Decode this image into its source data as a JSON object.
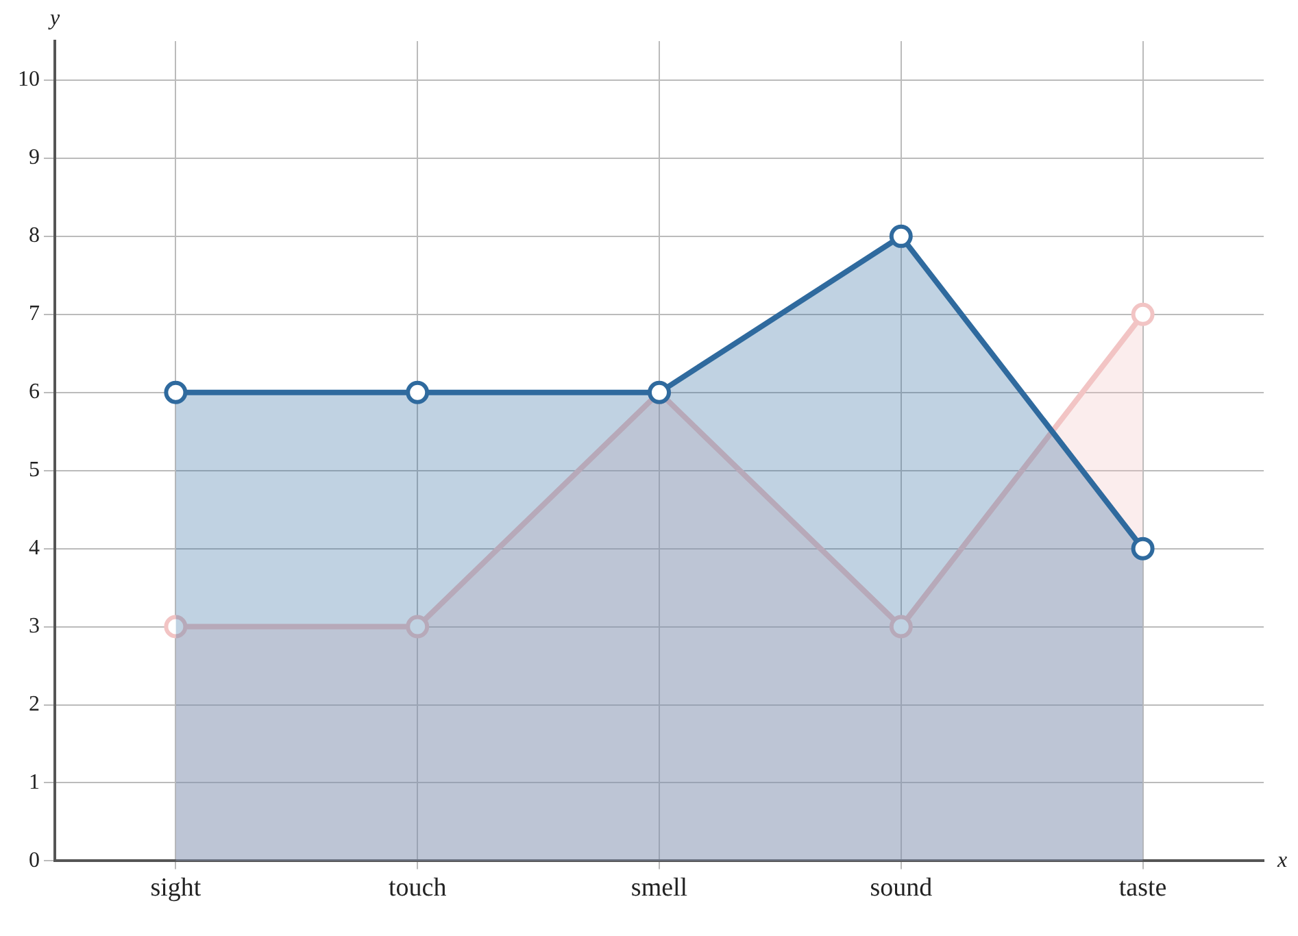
{
  "chart_data": {
    "type": "area",
    "xlabel": "x",
    "ylabel": "y",
    "categories": [
      "sight",
      "touch",
      "smell",
      "sound",
      "taste"
    ],
    "series": [
      {
        "color": "#f2c4c4",
        "values": [
          3,
          3,
          6,
          3,
          7
        ]
      },
      {
        "color": "#2f6a9e",
        "values": [
          6,
          6,
          6,
          8,
          4
        ]
      }
    ],
    "ylim": [
      0,
      10.5
    ],
    "yticks": [
      0,
      1,
      2,
      3,
      4,
      5,
      6,
      7,
      8,
      9,
      10
    ],
    "grid": true,
    "legend": false,
    "marker": "circle",
    "line_style": "solid"
  }
}
